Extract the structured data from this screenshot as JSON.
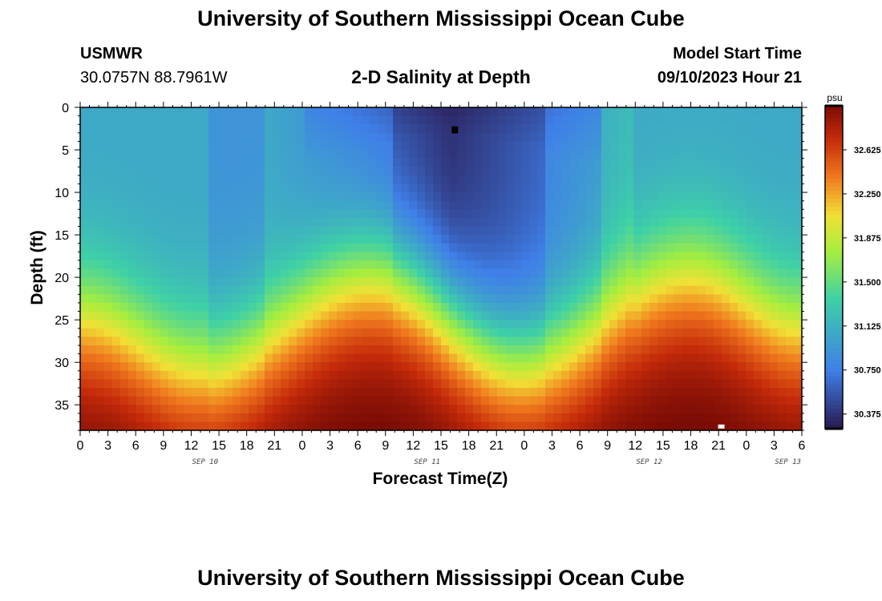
{
  "header": {
    "title": "University of Southern Mississippi Ocean Cube",
    "station": "USMWR",
    "coords": "30.0757N  88.7961W",
    "subtitle": "2-D Salinity at Depth",
    "model_start_label": "Model Start Time",
    "model_start_value": "09/10/2023 Hour 21"
  },
  "footer": {
    "title": "University of Southern Mississippi Ocean Cube"
  },
  "chart_data": {
    "type": "heatmap",
    "title": "2-D Salinity at Depth",
    "xlabel": "Forecast Time(Z)",
    "ylabel": "Depth (ft)",
    "x_tick_labels": [
      "0",
      "3",
      "6",
      "9",
      "12",
      "15",
      "18",
      "21",
      "0",
      "3",
      "6",
      "9",
      "12",
      "15",
      "18",
      "21",
      "0",
      "3",
      "6",
      "9",
      "12",
      "15",
      "18",
      "21",
      "0",
      "3",
      "6"
    ],
    "day_labels": [
      {
        "label": "SEP 10",
        "tick_index": 4.5
      },
      {
        "label": "SEP 11",
        "tick_index": 12.5
      },
      {
        "label": "SEP 12",
        "tick_index": 20.5
      },
      {
        "label": "SEP 13",
        "tick_index": 25.5
      }
    ],
    "x_range_hours": [
      0,
      78
    ],
    "y_ticks": [
      0,
      5,
      10,
      15,
      20,
      25,
      30,
      35
    ],
    "y_range": [
      0,
      38
    ],
    "y_inverted": true,
    "colorbar": {
      "unit": "psu",
      "ticks": [
        "32.625",
        "32.250",
        "31.875",
        "31.500",
        "31.125",
        "30.750",
        "30.375"
      ],
      "range": [
        30.25,
        33.0
      ]
    },
    "field_description": {
      "surface_min": 30.3,
      "bottom_max": 32.95,
      "fresh_core_hour": 40,
      "halocline_depth_ft_at_hours": [
        [
          0,
          25
        ],
        [
          13,
          31
        ],
        [
          32,
          20
        ],
        [
          48,
          30
        ],
        [
          66,
          20
        ],
        [
          78,
          26
        ]
      ]
    },
    "colors": {
      "low": "#2a1850",
      "mid_low": "#3f7fe8",
      "mid": "#3ed0a8",
      "mid_high": "#f2e036",
      "high": "#7a0c05"
    }
  }
}
